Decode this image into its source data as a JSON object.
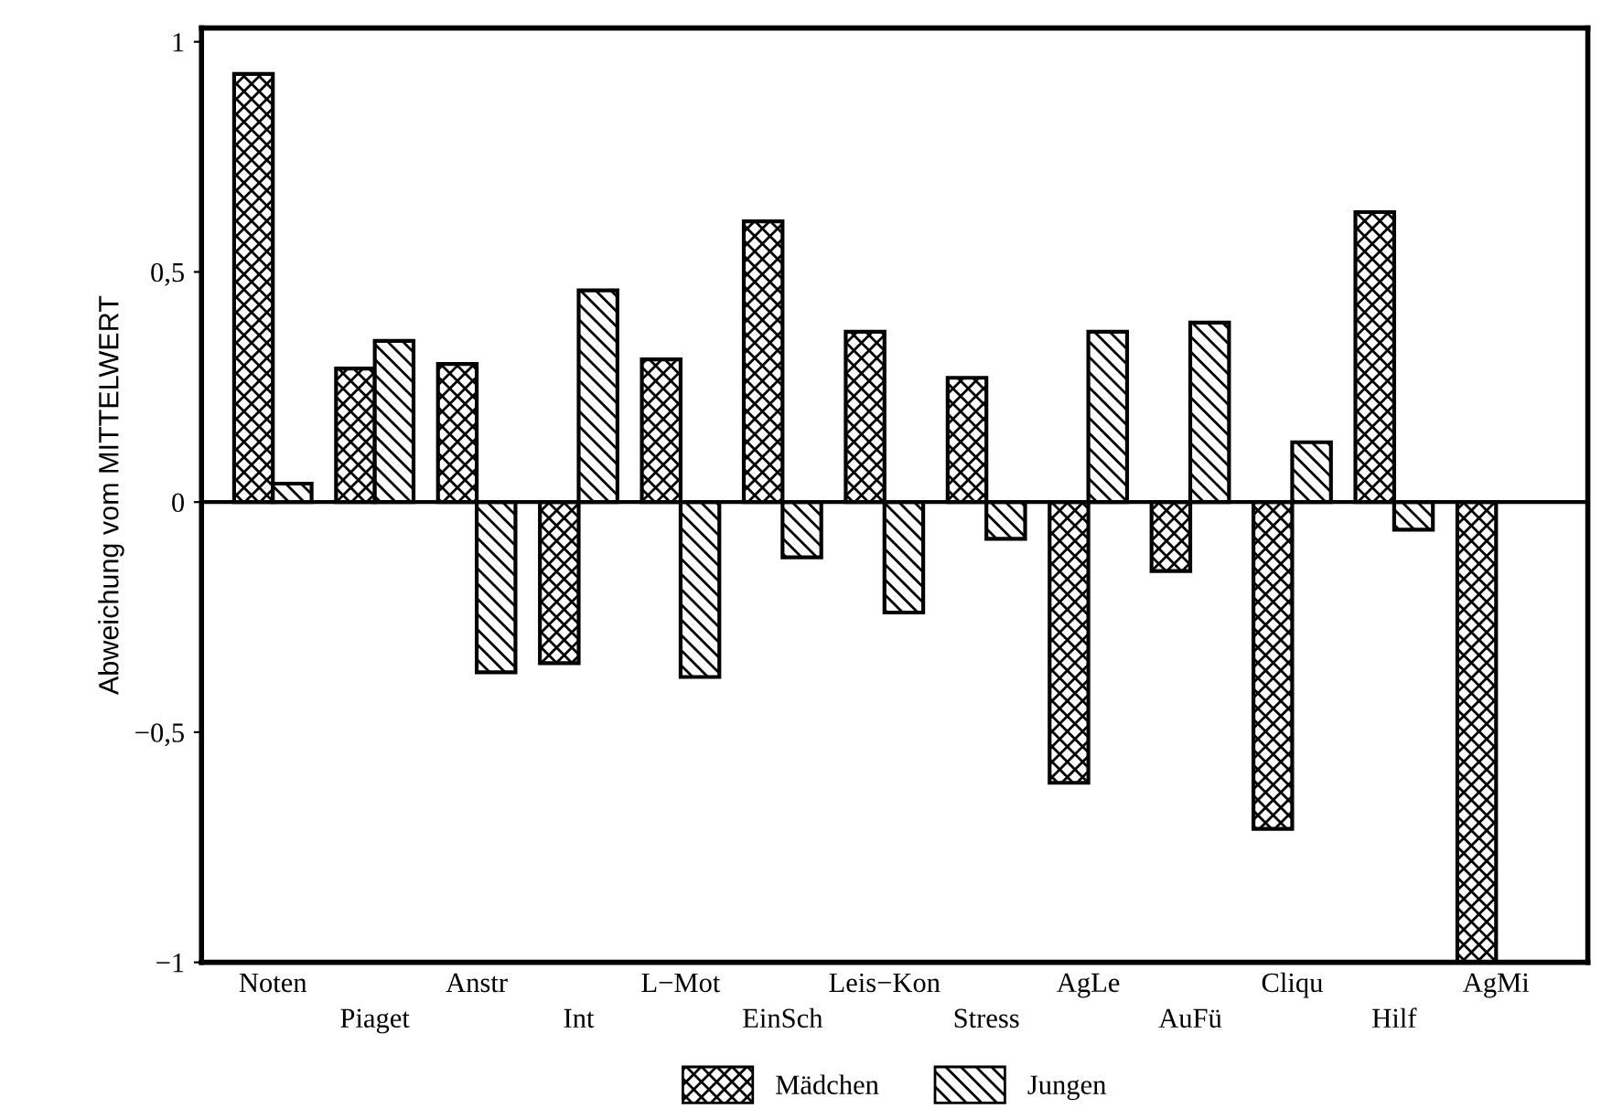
{
  "chart_data": {
    "type": "bar",
    "ylabel": "Abweichung vom MITTELWERT",
    "categories": [
      "Noten",
      "Piaget",
      "Anstr",
      "Int",
      "L−Mot",
      "EinSch",
      "Leis−Kon",
      "Stress",
      "AgLe",
      "AuFü",
      "Cliqu",
      "Hilf",
      "AgMi"
    ],
    "series": [
      {
        "name": "Mädchen",
        "color": "#000000",
        "values": [
          0.93,
          0.29,
          0.3,
          -0.35,
          0.31,
          0.61,
          0.37,
          0.27,
          -0.61,
          -0.15,
          -0.71,
          0.63,
          -1
        ]
      },
      {
        "name": "Jungen",
        "color": "#000000",
        "values": [
          0.04,
          0.35,
          -0.37,
          0.46,
          -0.38,
          -0.12,
          -0.24,
          -0.08,
          0.37,
          0.39,
          0.13,
          -0.06,
          null
        ]
      }
    ],
    "ylim": [
      -1,
      1.03
    ],
    "yticks": [
      {
        "value": -1,
        "label": "−1"
      },
      {
        "value": -0.5,
        "label": "−0,5"
      },
      0,
      {
        "value": 0.5,
        "label": "0,5"
      },
      1
    ],
    "ref_lines": [
      {
        "axis": "y",
        "value": 0
      }
    ],
    "grid": false,
    "legend": "bottom"
  }
}
